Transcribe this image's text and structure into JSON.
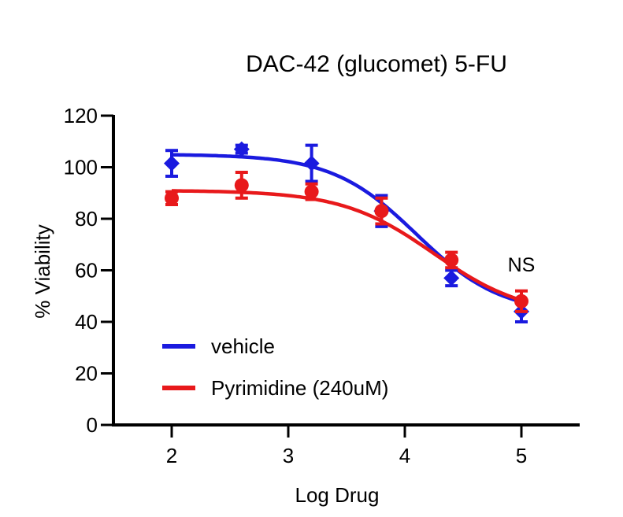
{
  "chart_data": {
    "type": "scatter",
    "title": "DAC-42 (glucomet) 5-FU",
    "xlabel": "Log Drug",
    "ylabel": "% Viability",
    "xlim": [
      1.5,
      5.5
    ],
    "ylim": [
      0,
      120
    ],
    "xticks": [
      "2",
      "3",
      "4",
      "5"
    ],
    "yticks": [
      "0",
      "20",
      "40",
      "60",
      "80",
      "100",
      "120"
    ],
    "grid": false,
    "legend": "bottom-left",
    "annotation": "NS",
    "series": [
      {
        "name": "vehicle",
        "color": "#1a1adf",
        "marker": "diamond",
        "x": [
          2,
          2.6,
          3.2,
          3.8,
          4.4,
          5
        ],
        "y": [
          101.5,
          107,
          101.5,
          83,
          57,
          44
        ],
        "err": [
          5,
          1.5,
          7,
          6,
          3,
          4
        ],
        "fit": {
          "top": 105,
          "bottom": 43,
          "logEC50": 4.1,
          "hill": 1.2
        }
      },
      {
        "name": "Pyrimidine (240uM)",
        "color": "#e8191b",
        "marker": "circle",
        "x": [
          2,
          2.6,
          3.2,
          3.8,
          4.4,
          5
        ],
        "y": [
          88,
          93,
          90.5,
          83,
          64,
          48
        ],
        "err": [
          2.5,
          5,
          3,
          5,
          3,
          4
        ],
        "fit": {
          "top": 91,
          "bottom": 42,
          "logEC50": 4.25,
          "hill": 1.1
        }
      }
    ]
  }
}
